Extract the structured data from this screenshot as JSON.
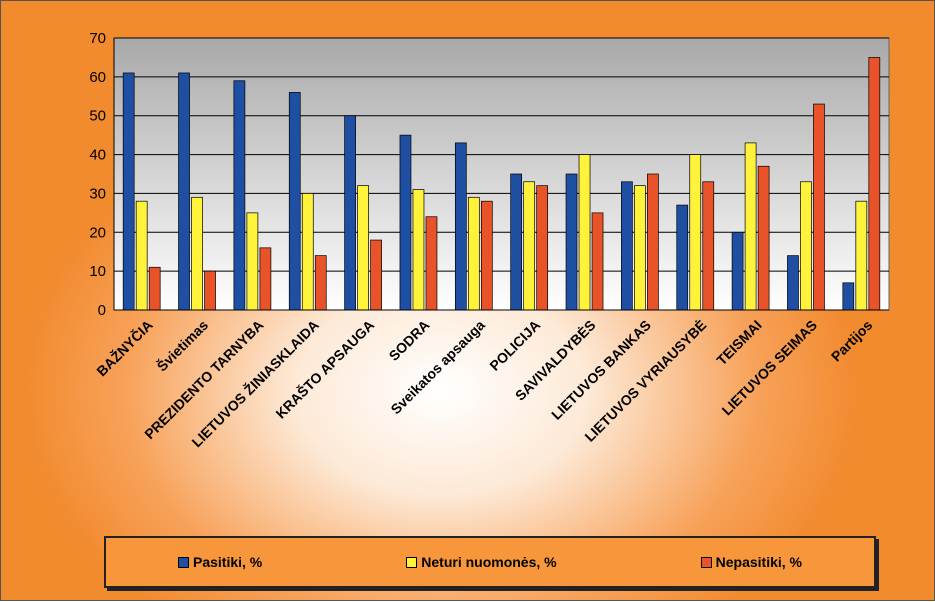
{
  "chart_data": {
    "type": "bar",
    "title": "",
    "xlabel": "",
    "ylabel": "",
    "ylim": [
      0,
      70
    ],
    "yticks": [
      "0",
      "10",
      "20",
      "30",
      "40",
      "50",
      "60",
      "70"
    ],
    "grid": true,
    "legend_position": "bottom",
    "categories": [
      "BAŽNYČIA",
      "Švietimas",
      "PREZIDENTO TARNYBA",
      "LIETUVOS ŽINIASKLAIDA",
      "KRAŠTO APSAUGA",
      "SODRA",
      "Sveikatos apsauga",
      "POLICIJA",
      "SAVIVALDYBĖS",
      "LIETUVOS BANKAS",
      "LIETUVOS VYRIAUSYBĖ",
      "TEISMAI",
      "LIETUVOS SEIMAS",
      "Partijos"
    ],
    "series": [
      {
        "name": "Pasitiki, %",
        "color": "#1f4fa3",
        "values": [
          61,
          61,
          59,
          56,
          50,
          45,
          43,
          35,
          35,
          33,
          27,
          20,
          14,
          7
        ]
      },
      {
        "name": "Neturi nuomonės, %",
        "color": "#fff23a",
        "values": [
          28,
          29,
          25,
          30,
          32,
          31,
          29,
          33,
          40,
          32,
          40,
          43,
          33,
          28
        ]
      },
      {
        "name": "Nepasitiki, %",
        "color": "#e8532a",
        "values": [
          11,
          10,
          16,
          14,
          18,
          24,
          28,
          32,
          25,
          35,
          33,
          37,
          53,
          65
        ]
      }
    ]
  }
}
